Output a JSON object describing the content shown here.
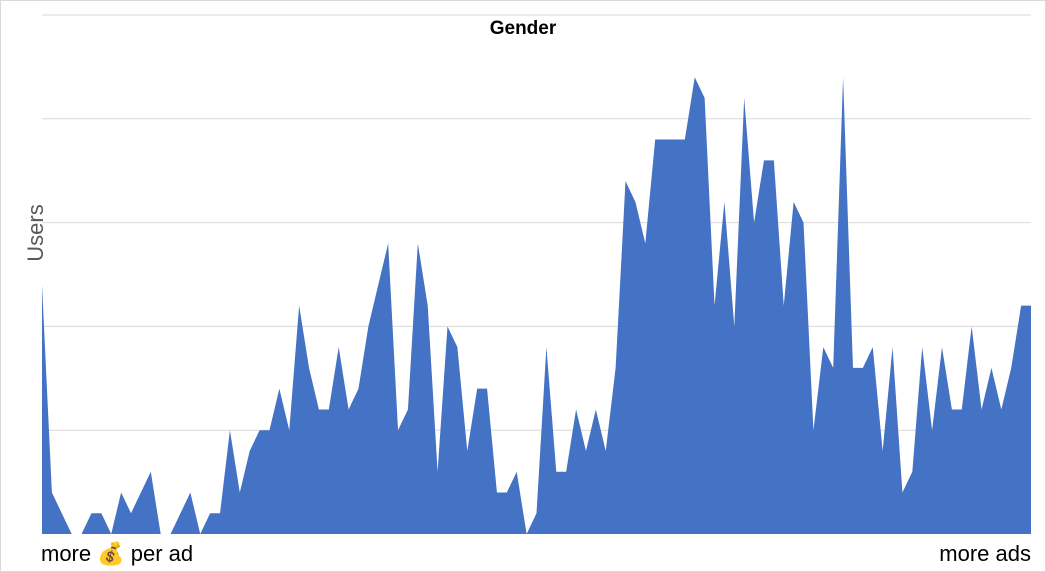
{
  "chart_data": {
    "type": "area",
    "title": "Gender",
    "xlabel": "",
    "ylabel": "Users",
    "ylim": [
      0,
      500
    ],
    "grid": true,
    "legend": "none",
    "x_tick_labels": {
      "left": "more 💰 per ad",
      "right": "more ads"
    },
    "color": "#4472C4",
    "series": [
      {
        "values": [
          240,
          40,
          20,
          0,
          0,
          20,
          20,
          0,
          40,
          20,
          40,
          60,
          0,
          0,
          20,
          40,
          0,
          20,
          20,
          100,
          40,
          80,
          100,
          100,
          140,
          100,
          220,
          160,
          120,
          120,
          180,
          120,
          140,
          200,
          240,
          280,
          100,
          120,
          280,
          220,
          60,
          200,
          180,
          80,
          140,
          140,
          40,
          40,
          60,
          0,
          20,
          180,
          60,
          60,
          120,
          80,
          120,
          80,
          160,
          340,
          320,
          280,
          380,
          380,
          380,
          380,
          440,
          420,
          220,
          320,
          200,
          420,
          300,
          360,
          360,
          220,
          320,
          300,
          100,
          180,
          160,
          440,
          160,
          160,
          180,
          80,
          180,
          40,
          60,
          180,
          100,
          180,
          120,
          120,
          200,
          120,
          160,
          120,
          160,
          220,
          220
        ]
      }
    ]
  }
}
